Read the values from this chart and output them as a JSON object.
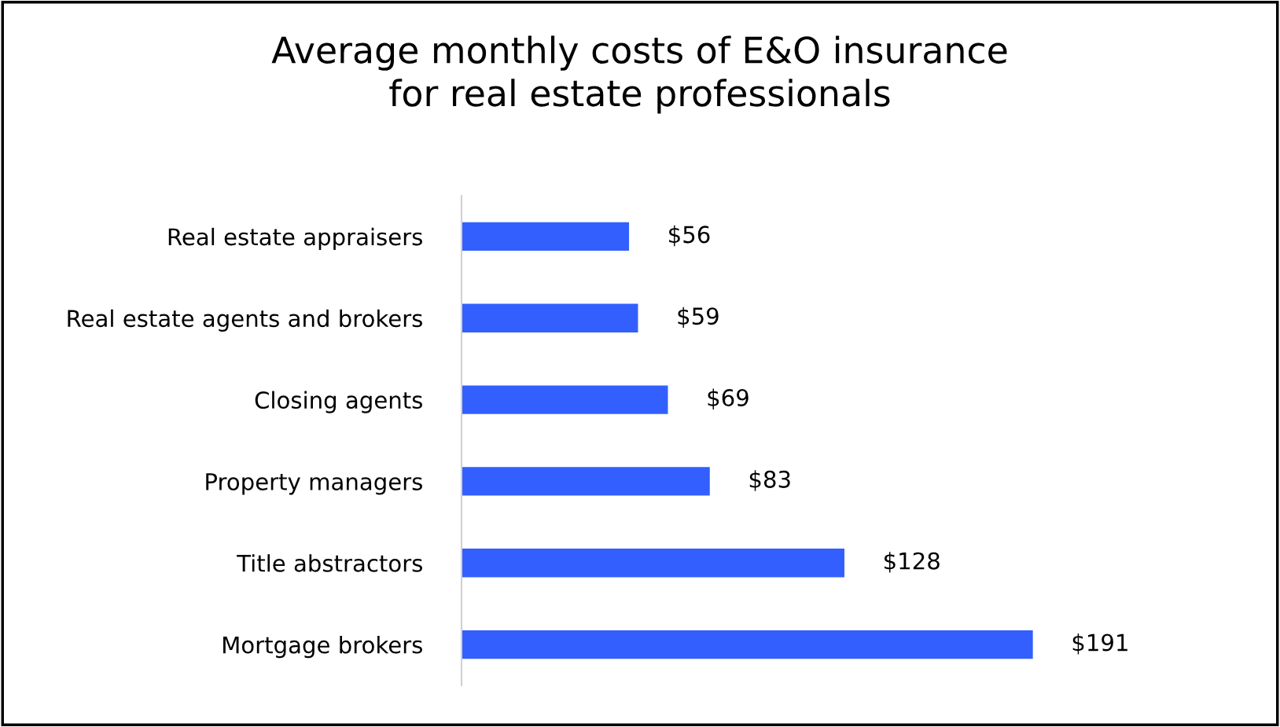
{
  "chart_data": {
    "type": "bar",
    "orientation": "horizontal",
    "title": "Average monthly costs of E&O insurance\nfor real estate professionals",
    "categories": [
      "Real estate appraisers",
      "Real estate agents and brokers",
      "Closing agents",
      "Property managers",
      "Title abstractors",
      "Mortgage brokers"
    ],
    "values": [
      56,
      59,
      69,
      83,
      128,
      191
    ],
    "color": "#335ffe",
    "value_labels": [
      "$56",
      "$59",
      "$69",
      "$83",
      "$128",
      "$191"
    ],
    "grid": false,
    "legend": false
  }
}
